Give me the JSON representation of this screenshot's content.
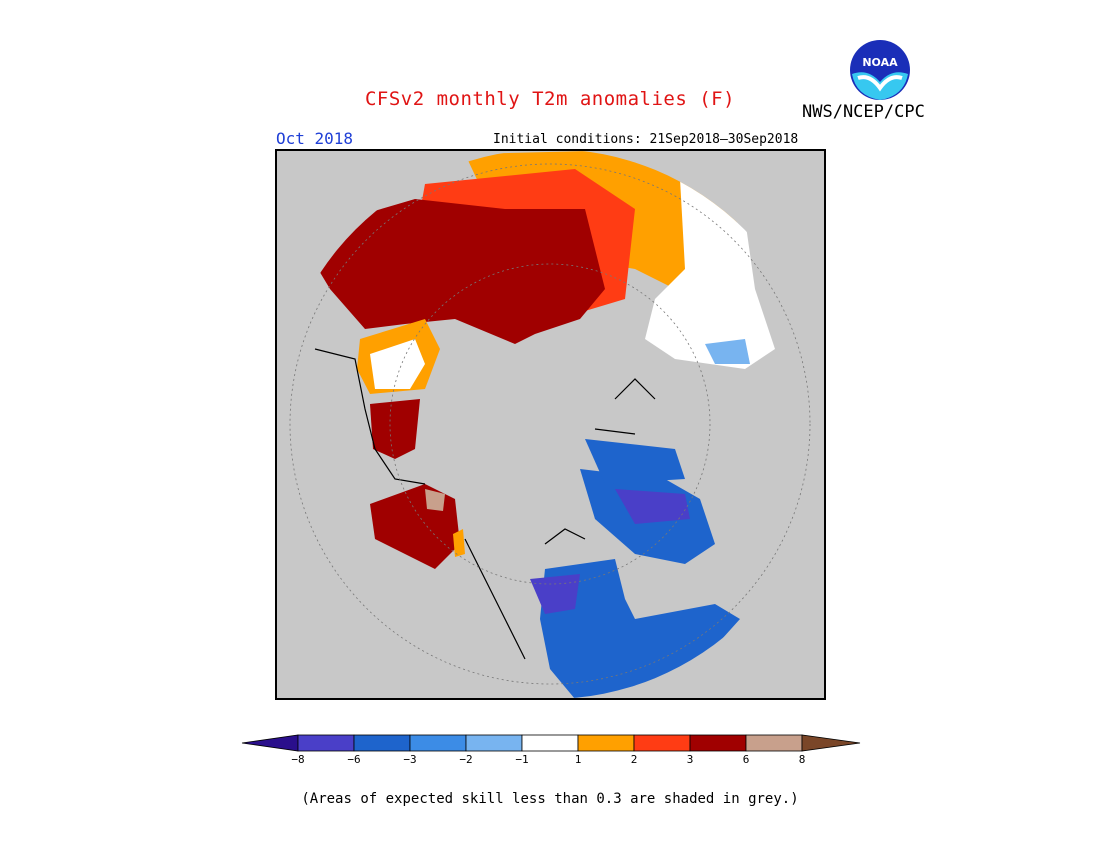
{
  "header": {
    "title": "CFSv2 monthly T2m anomalies (F)",
    "organization": "NWS/NCEP/CPC",
    "logo_text": "NOAA",
    "month": "Oct 2018",
    "initial_conditions": "Initial conditions: 21Sep2018–30Sep2018"
  },
  "colors": {
    "title": "#e01414",
    "month": "#1f3fd6",
    "skill_grey": "#c8c8c8",
    "bins": [
      "#2a0f8c",
      "#4a3fc8",
      "#1e64cc",
      "#3c8ce6",
      "#78b4f0",
      "#ffffff",
      "#ffa000",
      "#ff3c14",
      "#a00000",
      "#c8a08c",
      "#7a4628"
    ]
  },
  "legend": {
    "tick_labels": [
      "−8",
      "−6",
      "−3",
      "−2",
      "−1",
      "1",
      "2",
      "3",
      "6",
      "8"
    ]
  },
  "footnote": "(Areas of expected skill less than 0.3 are shaded in grey.)"
}
